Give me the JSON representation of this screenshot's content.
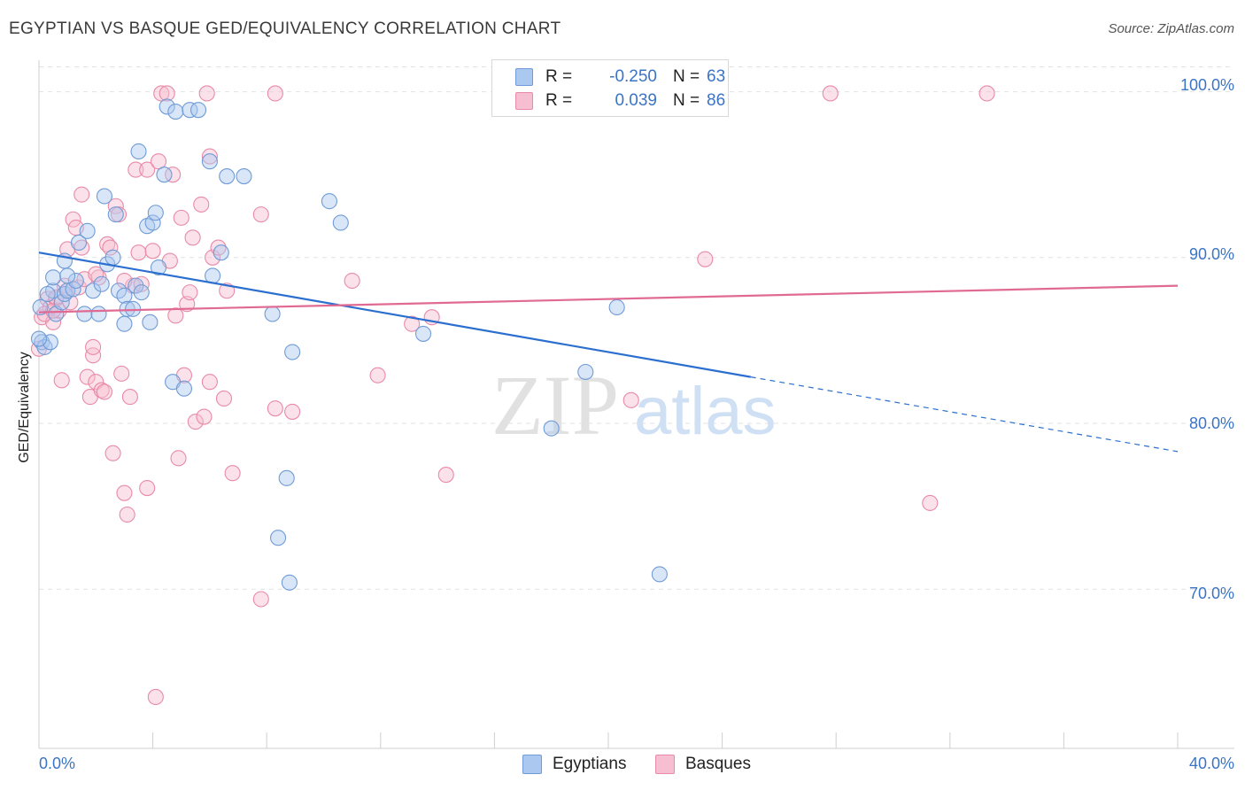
{
  "header": {
    "title": "EGYPTIAN VS BASQUE GED/EQUIVALENCY CORRELATION CHART",
    "source": "Source: ZipAtlas.com"
  },
  "watermark": {
    "zip": "ZIP",
    "atlas": "atlas"
  },
  "legend": {
    "rows": [
      {
        "r_label": "R =",
        "r_value": "-0.250",
        "n_label": "N =",
        "n_value": "63"
      },
      {
        "r_label": "R =",
        "r_value": "0.039",
        "n_label": "N =",
        "n_value": "86"
      }
    ],
    "bottom": [
      "Egyptians",
      "Basques"
    ]
  },
  "colors": {
    "egyptians_fill": "#aac8f0",
    "egyptians_stroke": "#6f9bd6",
    "egyptians_line": "#2a6fcf",
    "basques_fill": "#f6bfd1",
    "basques_stroke": "#e88aa8",
    "basques_line": "#e06a93",
    "tick_label": "#3b74c4",
    "grid": "#e2e2e2"
  },
  "chart_data": {
    "type": "scatter",
    "title": "EGYPTIAN VS BASQUE GED/EQUIVALENCY CORRELATION CHART",
    "xlabel": "",
    "ylabel": "GED/Equivalency",
    "xlim": [
      0,
      40
    ],
    "ylim": [
      60.4,
      101.9
    ],
    "x_ticks": [
      0,
      4,
      8,
      12,
      16,
      20,
      24,
      28,
      32,
      36,
      40
    ],
    "x_tick_labels": [
      "0.0%",
      "40.0%"
    ],
    "y_ticks": [
      70,
      80,
      90,
      100
    ],
    "y_tick_labels": [
      "70.0%",
      "80.0%",
      "90.0%",
      "100.0%"
    ],
    "grid": true,
    "legend_position": "top-center",
    "series": [
      {
        "name": "Egyptians",
        "r": -0.25,
        "n": 63,
        "trend": {
          "x0": 0,
          "y0": 90.3,
          "x1": 25.0,
          "y1": 82.8,
          "dashed_to_x": 40,
          "dashed_to_y": 78.3
        },
        "points": [
          [
            0.1,
            84.9
          ],
          [
            0.2,
            84.6
          ],
          [
            0.4,
            84.9
          ],
          [
            0.5,
            88.0
          ],
          [
            0.5,
            88.8
          ],
          [
            0.6,
            86.6
          ],
          [
            0.8,
            87.3
          ],
          [
            0.9,
            89.8
          ],
          [
            0.9,
            87.8
          ],
          [
            1.0,
            88.0
          ],
          [
            1.2,
            88.1
          ],
          [
            1.3,
            88.6
          ],
          [
            1.4,
            90.9
          ],
          [
            1.6,
            86.6
          ],
          [
            1.7,
            91.6
          ],
          [
            1.9,
            88.0
          ],
          [
            2.1,
            86.6
          ],
          [
            2.2,
            88.4
          ],
          [
            2.3,
            93.7
          ],
          [
            2.4,
            89.6
          ],
          [
            2.6,
            90.0
          ],
          [
            2.7,
            92.6
          ],
          [
            2.8,
            88.0
          ],
          [
            3.0,
            86.0
          ],
          [
            3.0,
            87.7
          ],
          [
            3.1,
            86.9
          ],
          [
            3.3,
            86.9
          ],
          [
            3.4,
            88.3
          ],
          [
            3.5,
            96.4
          ],
          [
            3.6,
            87.9
          ],
          [
            3.8,
            91.9
          ],
          [
            3.9,
            86.1
          ],
          [
            4.0,
            92.1
          ],
          [
            4.1,
            92.7
          ],
          [
            4.2,
            89.4
          ],
          [
            4.4,
            95.0
          ],
          [
            4.5,
            99.1
          ],
          [
            4.7,
            82.5
          ],
          [
            4.8,
            98.8
          ],
          [
            5.1,
            82.1
          ],
          [
            5.3,
            98.9
          ],
          [
            5.6,
            98.9
          ],
          [
            6.0,
            95.8
          ],
          [
            6.1,
            88.9
          ],
          [
            6.4,
            90.3
          ],
          [
            6.6,
            94.9
          ],
          [
            7.2,
            94.9
          ],
          [
            8.2,
            86.6
          ],
          [
            8.9,
            84.3
          ],
          [
            8.7,
            76.7
          ],
          [
            8.8,
            70.4
          ],
          [
            8.4,
            73.1
          ],
          [
            10.2,
            93.4
          ],
          [
            10.6,
            92.1
          ],
          [
            13.5,
            85.4
          ],
          [
            18.0,
            79.7
          ],
          [
            19.2,
            83.1
          ],
          [
            20.3,
            87.0
          ],
          [
            21.8,
            70.9
          ],
          [
            0.0,
            85.1
          ],
          [
            0.05,
            87.0
          ],
          [
            0.3,
            87.8
          ],
          [
            1.0,
            88.9
          ]
        ]
      },
      {
        "name": "Basques",
        "r": 0.039,
        "n": 86,
        "trend": {
          "x0": 0,
          "y0": 86.7,
          "x1": 40,
          "y1": 88.3
        },
        "points": [
          [
            0.0,
            84.5
          ],
          [
            0.1,
            86.4
          ],
          [
            0.3,
            87.5
          ],
          [
            0.4,
            87.0
          ],
          [
            0.5,
            86.1
          ],
          [
            0.6,
            87.5
          ],
          [
            0.7,
            86.8
          ],
          [
            0.8,
            82.6
          ],
          [
            0.9,
            88.3
          ],
          [
            1.0,
            90.5
          ],
          [
            1.0,
            88.0
          ],
          [
            1.2,
            92.3
          ],
          [
            1.3,
            91.8
          ],
          [
            1.4,
            88.2
          ],
          [
            1.5,
            93.8
          ],
          [
            1.5,
            90.6
          ],
          [
            1.6,
            88.7
          ],
          [
            1.7,
            82.8
          ],
          [
            1.8,
            81.6
          ],
          [
            1.9,
            84.1
          ],
          [
            1.9,
            84.6
          ],
          [
            2.0,
            82.5
          ],
          [
            2.1,
            88.8
          ],
          [
            2.2,
            82.0
          ],
          [
            2.3,
            81.9
          ],
          [
            2.4,
            90.8
          ],
          [
            2.5,
            90.6
          ],
          [
            2.6,
            78.2
          ],
          [
            2.7,
            93.1
          ],
          [
            2.8,
            92.6
          ],
          [
            2.9,
            83.0
          ],
          [
            3.0,
            75.8
          ],
          [
            3.1,
            74.5
          ],
          [
            3.2,
            81.6
          ],
          [
            3.3,
            88.3
          ],
          [
            3.4,
            95.3
          ],
          [
            3.5,
            90.3
          ],
          [
            3.6,
            88.4
          ],
          [
            3.8,
            76.1
          ],
          [
            3.8,
            95.3
          ],
          [
            4.0,
            90.4
          ],
          [
            4.2,
            95.8
          ],
          [
            4.3,
            99.9
          ],
          [
            4.5,
            99.9
          ],
          [
            4.6,
            89.8
          ],
          [
            4.7,
            95.0
          ],
          [
            4.8,
            86.5
          ],
          [
            4.9,
            77.9
          ],
          [
            5.0,
            92.4
          ],
          [
            5.1,
            82.9
          ],
          [
            5.2,
            87.2
          ],
          [
            5.3,
            87.9
          ],
          [
            5.4,
            91.2
          ],
          [
            5.5,
            80.1
          ],
          [
            5.7,
            93.2
          ],
          [
            5.8,
            80.4
          ],
          [
            5.9,
            99.9
          ],
          [
            6.0,
            82.5
          ],
          [
            6.0,
            96.1
          ],
          [
            6.1,
            90.0
          ],
          [
            6.3,
            90.6
          ],
          [
            6.5,
            81.5
          ],
          [
            6.8,
            77.0
          ],
          [
            7.8,
            92.6
          ],
          [
            7.8,
            69.4
          ],
          [
            8.3,
            80.9
          ],
          [
            8.9,
            80.7
          ],
          [
            11.0,
            88.6
          ],
          [
            11.9,
            82.9
          ],
          [
            13.1,
            86.0
          ],
          [
            13.8,
            86.4
          ],
          [
            14.3,
            76.9
          ],
          [
            20.8,
            81.4
          ],
          [
            23.4,
            89.9
          ],
          [
            27.8,
            99.9
          ],
          [
            31.3,
            75.2
          ],
          [
            33.3,
            99.9
          ],
          [
            4.1,
            63.5
          ],
          [
            8.3,
            99.9
          ],
          [
            0.2,
            86.6
          ],
          [
            0.5,
            86.8
          ],
          [
            1.1,
            87.3
          ],
          [
            0.6,
            87.6
          ],
          [
            2.0,
            89.0
          ],
          [
            3.0,
            88.6
          ],
          [
            6.6,
            88.0
          ]
        ]
      }
    ]
  }
}
